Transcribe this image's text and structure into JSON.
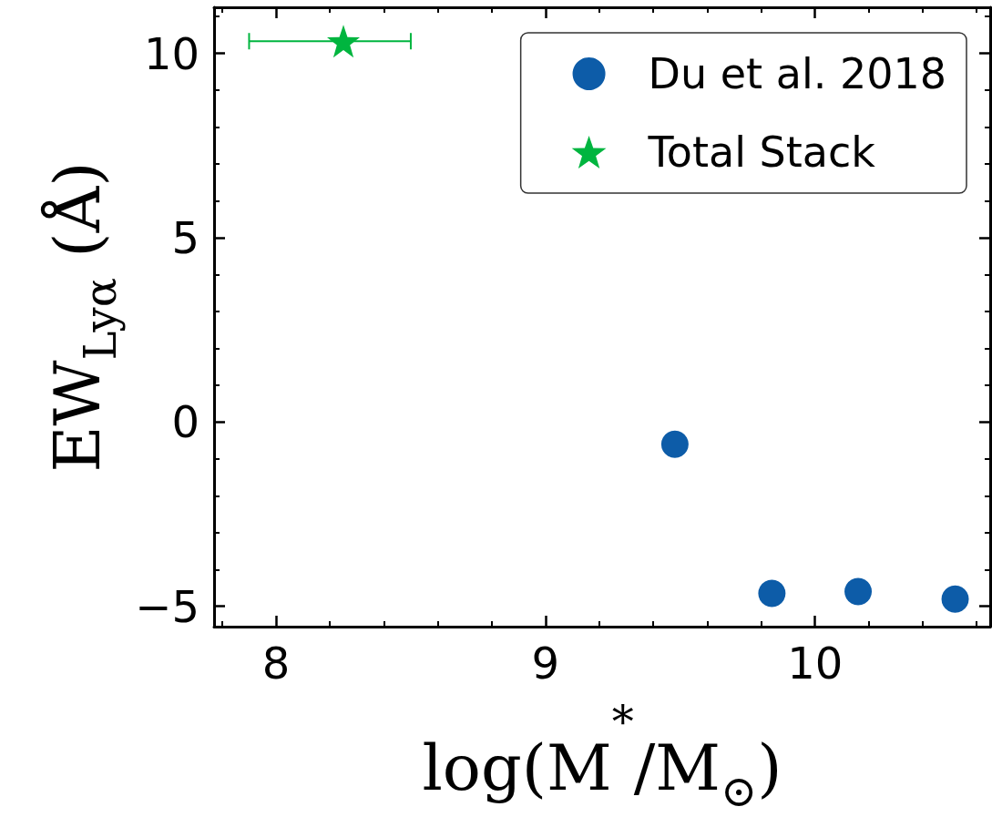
{
  "chart_data": {
    "type": "scatter",
    "xlabel": "log(M$^{*}$/M$_{⊙}$)",
    "ylabel": "EW$_{Lyα}$ (Å)",
    "series": [
      {
        "name": "Du et al. 2018",
        "color": "#0d5ca8",
        "marker": "circle",
        "x": [
          9.48,
          9.84,
          10.16,
          10.52
        ],
        "values": [
          -0.6,
          -4.65,
          -4.6,
          -4.8
        ]
      },
      {
        "name": "Total Stack",
        "color": "#00b53f",
        "marker": "star",
        "x": [
          8.25
        ],
        "values": [
          10.33
        ],
        "xerrors": [
          [
            7.9,
            8.5
          ]
        ]
      }
    ],
    "xlim": [
      7.77,
      10.65
    ],
    "xticks": [
      {
        "value": 7.8,
        "label": null
      },
      8,
      {
        "value": 8.2,
        "label": null
      },
      {
        "value": 8.4,
        "label": null
      },
      {
        "value": 8.6,
        "label": null
      },
      {
        "value": 8.8,
        "label": null
      },
      9,
      {
        "value": 9.2,
        "label": null
      },
      {
        "value": 9.4,
        "label": null
      },
      {
        "value": 9.6,
        "label": null
      },
      {
        "value": 9.8,
        "label": null
      },
      10,
      {
        "value": 10.2,
        "label": null
      },
      {
        "value": 10.4,
        "label": null
      },
      {
        "value": 10.6,
        "label": null
      }
    ],
    "ylim": [
      -5.55,
      11.25
    ],
    "yticks": [
      {
        "value": -5,
        "label": "−5"
      },
      {
        "value": -4,
        "label": null
      },
      {
        "value": -3,
        "label": null
      },
      {
        "value": -2,
        "label": null
      },
      {
        "value": -1,
        "label": null
      },
      0,
      {
        "value": 1,
        "label": null
      },
      {
        "value": 2,
        "label": null
      },
      {
        "value": 3,
        "label": null
      },
      {
        "value": 4,
        "label": null
      },
      5,
      {
        "value": 6,
        "label": null
      },
      {
        "value": 7,
        "label": null
      },
      {
        "value": 8,
        "label": null
      },
      {
        "value": 9,
        "label": null
      },
      10,
      {
        "value": 11,
        "label": null
      }
    ],
    "grid": false,
    "legend": "top right"
  }
}
